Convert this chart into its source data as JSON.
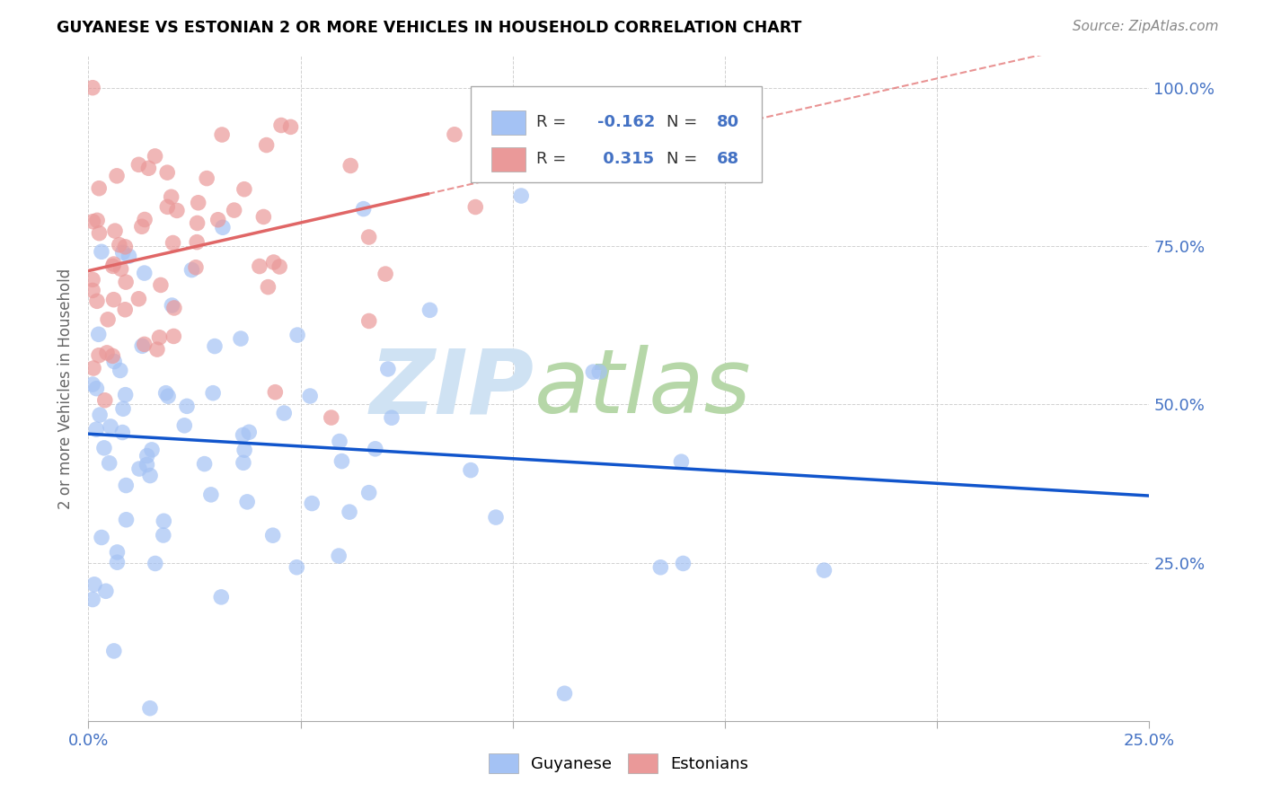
{
  "title": "GUYANESE VS ESTONIAN 2 OR MORE VEHICLES IN HOUSEHOLD CORRELATION CHART",
  "source": "Source: ZipAtlas.com",
  "ylabel_label": "2 or more Vehicles in Household",
  "legend_label1": "Guyanese",
  "legend_label2": "Estonians",
  "R1": "-0.162",
  "N1": "80",
  "R2": "0.315",
  "N2": "68",
  "blue_color": "#a4c2f4",
  "pink_color": "#ea9999",
  "blue_line_color": "#1155cc",
  "pink_line_color": "#e06666",
  "watermark_zip": "ZIP",
  "watermark_atlas": "atlas",
  "watermark_color_zip": "#c9daf8",
  "watermark_color_atlas": "#a0c4a0",
  "background_color": "#ffffff",
  "grid_color": "#cccccc",
  "title_color": "#000000",
  "axis_label_color": "#4472c4",
  "ylabel_color": "#666666",
  "xlim": [
    0.0,
    0.25
  ],
  "ylim": [
    0.0,
    1.05
  ],
  "x_tick_vals": [
    0.0,
    0.05,
    0.1,
    0.15,
    0.2,
    0.25
  ],
  "x_tick_labels": [
    "0.0%",
    "",
    "",
    "",
    "",
    "25.0%"
  ],
  "y_tick_vals": [
    0.0,
    0.25,
    0.5,
    0.75,
    1.0
  ],
  "y_tick_labels": [
    "",
    "25.0%",
    "50.0%",
    "75.0%",
    "100.0%"
  ]
}
